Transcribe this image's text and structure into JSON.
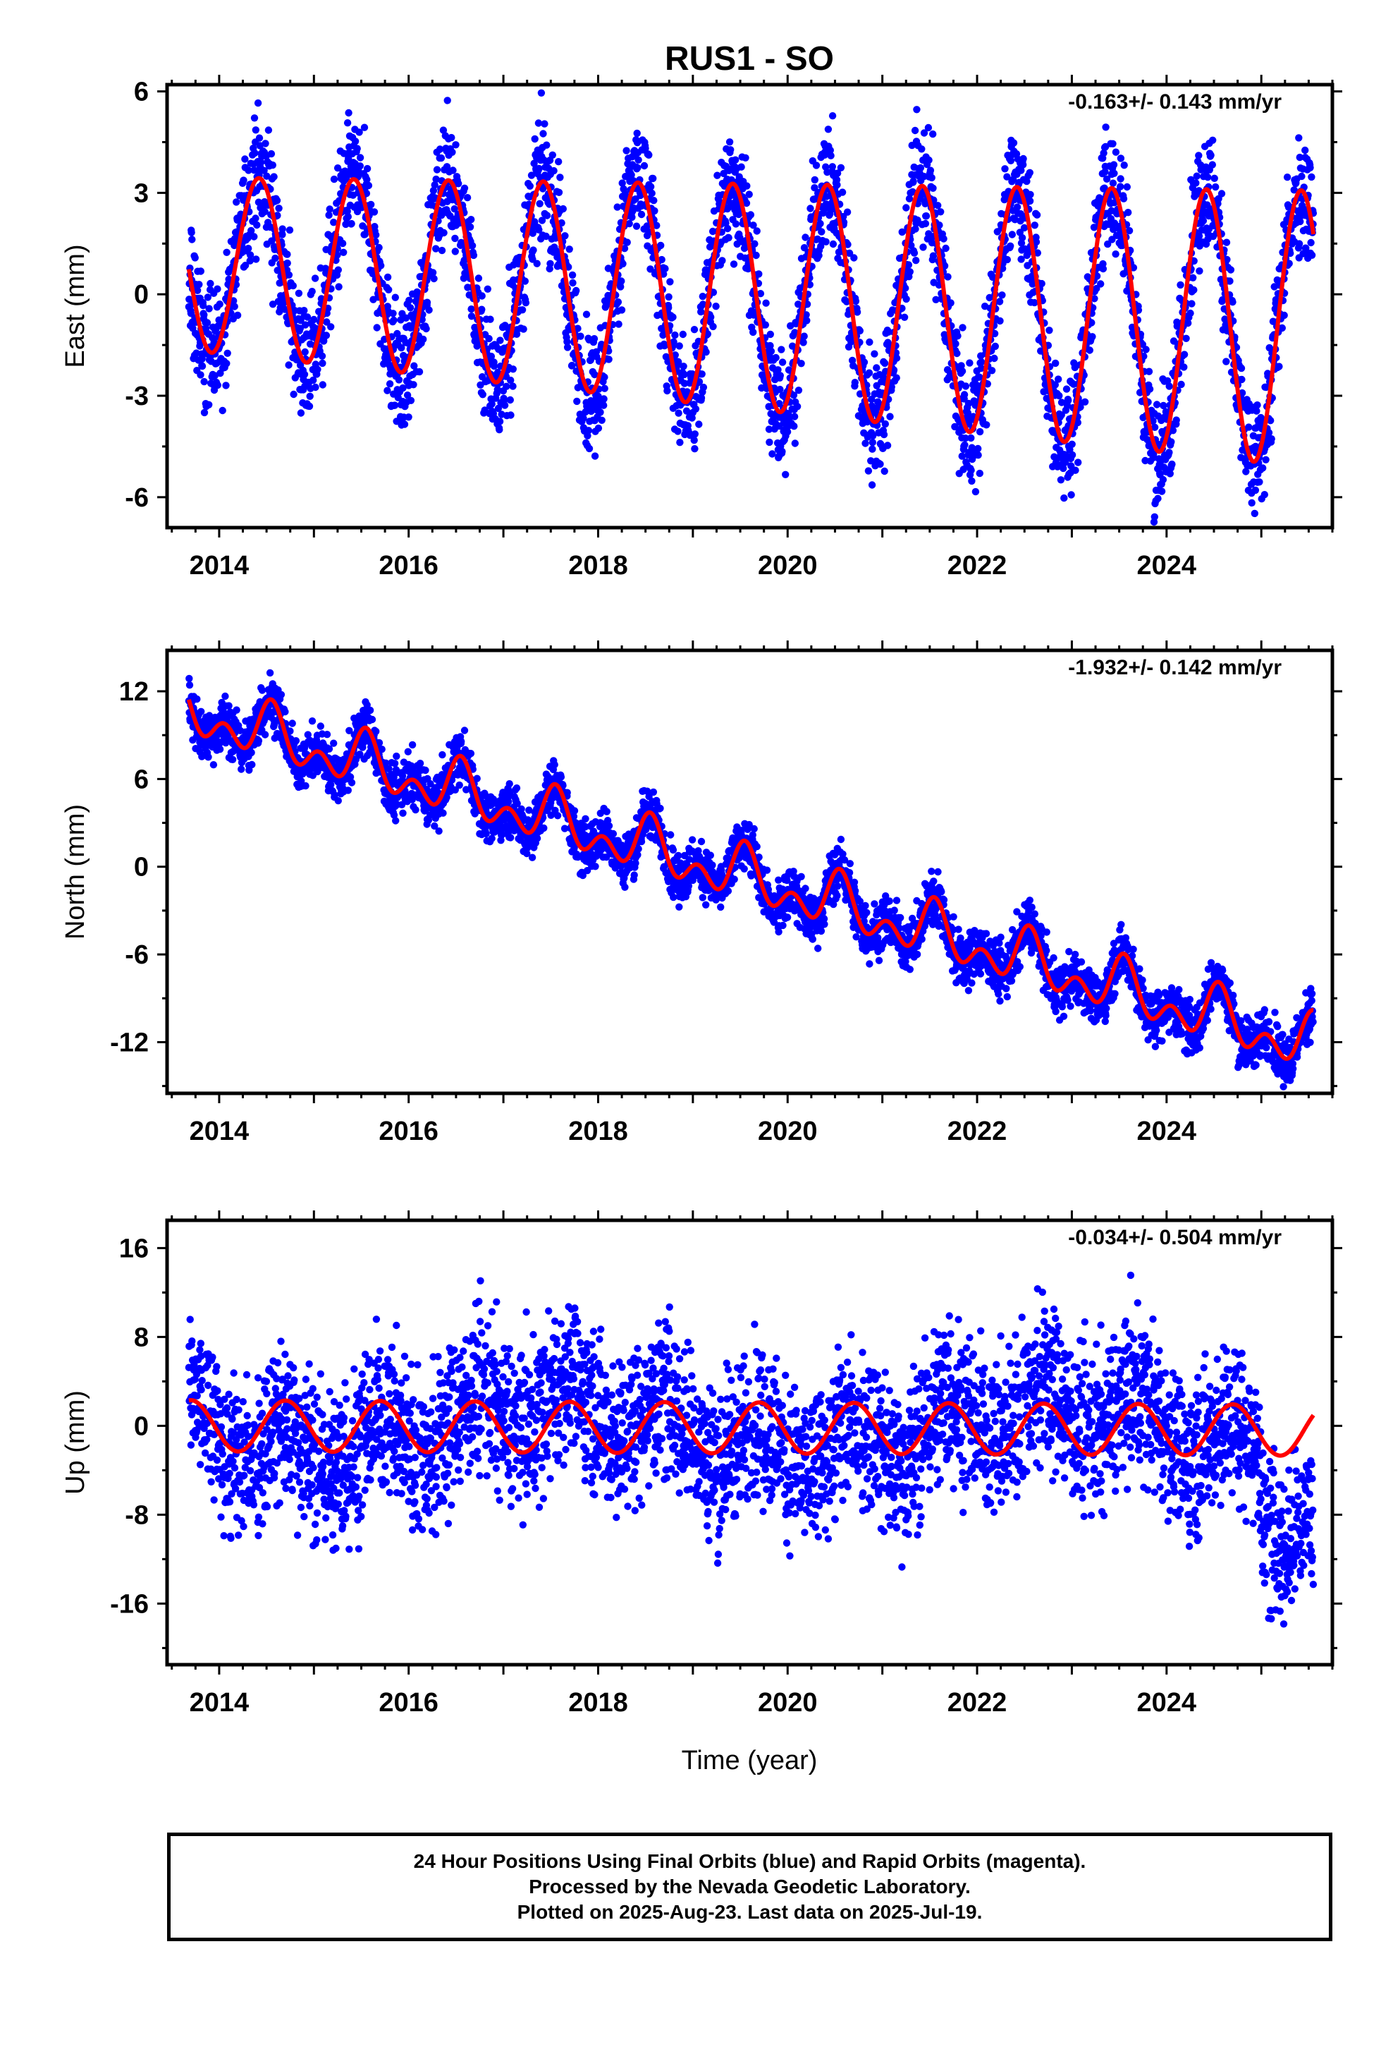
{
  "title": "RUS1 - SO",
  "xaxis": {
    "label": "Time (year)",
    "ticks": [
      "2014",
      "2016",
      "2018",
      "2020",
      "2022",
      "2024"
    ],
    "range": [
      2013.45,
      2025.75
    ],
    "data_start": 2013.68,
    "data_end": 2025.55
  },
  "colors": {
    "final_orbits": "#0000ff",
    "model_fit": "#ff0000",
    "axes": "#000000"
  },
  "chart_data": [
    {
      "type": "scatter",
      "component": "east",
      "ylabel": "East (mm)",
      "ylim": [
        -6.9,
        6.2
      ],
      "yticks": [
        6,
        3,
        0,
        -3,
        -6
      ],
      "ytick_labels": [
        "6",
        "3",
        "0",
        "-3",
        "-6"
      ],
      "velocity_label": "-0.163+/- 0.143 mm/yr",
      "trend_mm_per_yr": -0.163,
      "annual_amplitude_mm": 2.6,
      "annual_peak": 2013.42,
      "scatter_sd_mm": 0.9,
      "series": [
        {
          "values_description": "daily positions (final orbits)",
          "color": "#0000ff"
        },
        {
          "values_description": "model fit",
          "color": "#ff0000"
        }
      ]
    },
    {
      "type": "scatter",
      "component": "north",
      "ylabel": "North (mm)",
      "ylim": [
        -15.5,
        14.8
      ],
      "yticks": [
        12,
        6,
        0,
        -6,
        -12
      ],
      "ytick_labels": [
        "12",
        "6",
        "0",
        "-6",
        "-12"
      ],
      "velocity_label": "-1.932+/- 0.142 mm/yr",
      "trend_mm_per_yr": -1.932,
      "offset_at_2014_mm": 10.0,
      "annual_amplitude_mm": 1.3,
      "semiannual_amplitude_mm": 1.2,
      "scatter_sd_mm": 0.9,
      "series": [
        {
          "values_description": "daily positions (final orbits)",
          "color": "#0000ff"
        },
        {
          "values_description": "model fit",
          "color": "#ff0000"
        }
      ]
    },
    {
      "type": "scatter",
      "component": "up",
      "ylabel": "Up (mm)",
      "ylim": [
        -21.5,
        18.5
      ],
      "yticks": [
        16,
        8,
        0,
        -8,
        -16
      ],
      "ytick_labels": [
        "16",
        "8",
        "0",
        "-8",
        "-16"
      ],
      "velocity_label": "-0.034+/- 0.504 mm/yr",
      "trend_mm_per_yr": -0.034,
      "annual_amplitude_mm": 2.3,
      "scatter_sd_mm": 3.6,
      "series": [
        {
          "values_description": "daily positions (final orbits)",
          "color": "#0000ff"
        },
        {
          "values_description": "model fit",
          "color": "#ff0000"
        }
      ]
    }
  ],
  "footer": {
    "line1": "24 Hour Positions Using Final Orbits (blue) and Rapid Orbits (magenta).",
    "line2": "Processed by the Nevada Geodetic Laboratory.",
    "line3": "Plotted on 2025-Aug-23. Last data on 2025-Jul-19."
  }
}
